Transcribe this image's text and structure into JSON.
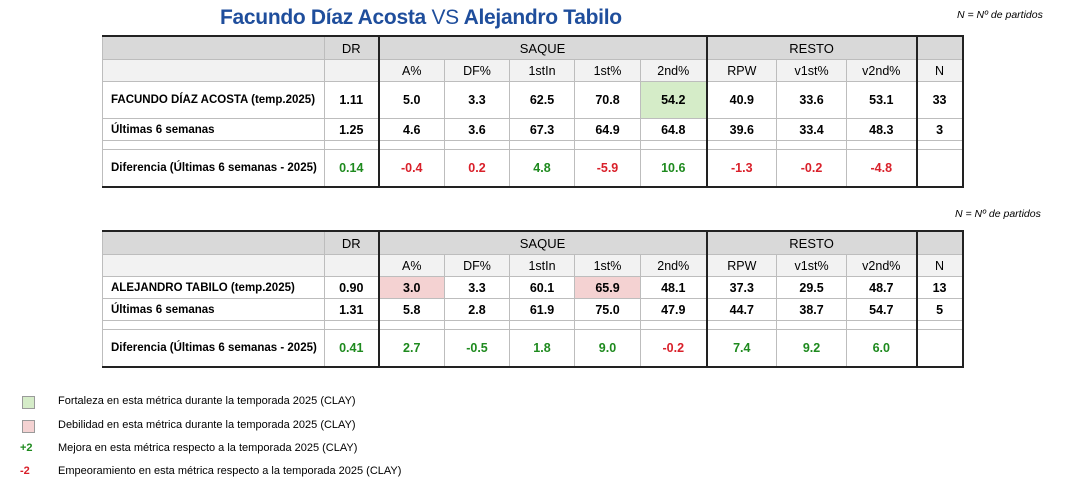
{
  "title": {
    "player1": "Facundo Díaz Acosta",
    "vs": "VS",
    "player2": "Alejandro Tabilo"
  },
  "note": "N = Nº de partidos",
  "headers": {
    "dr": "DR",
    "saque": "SAQUE",
    "resto": "RESTO",
    "cols": [
      "A%",
      "DF%",
      "1stIn",
      "1st%",
      "2nd%",
      "RPW",
      "v1st%",
      "v2nd%",
      "N"
    ]
  },
  "colors": {
    "strength": "#d5ecc8",
    "weakness": "#f4d2d2",
    "improve": "#1e8a1e",
    "worsen": "#d9202a",
    "title": "#1f4e9c"
  },
  "tables": [
    {
      "rows": [
        {
          "label": "FACUNDO DÍAZ ACOSTA (temp.2025)",
          "dr": "1.11",
          "values": [
            "5.0",
            "3.3",
            "62.5",
            "70.8",
            "54.2",
            "40.9",
            "33.6",
            "53.1",
            "33"
          ]
        },
        {
          "label": "Últimas 6 semanas",
          "dr": "1.25",
          "values": [
            "4.6",
            "3.6",
            "67.3",
            "64.9",
            "64.8",
            "39.6",
            "33.4",
            "48.3",
            "3"
          ]
        },
        {
          "label": "Diferencia (Últimas 6 semanas - 2025)",
          "dr": "0.14",
          "values": [
            "-0.4",
            "0.2",
            "4.8",
            "-5.9",
            "10.6",
            "-1.3",
            "-0.2",
            "-4.8",
            ""
          ]
        }
      ]
    },
    {
      "rows": [
        {
          "label": "ALEJANDRO TABILO (temp.2025)",
          "dr": "0.90",
          "values": [
            "3.0",
            "3.3",
            "60.1",
            "65.9",
            "48.1",
            "37.3",
            "29.5",
            "48.7",
            "13"
          ]
        },
        {
          "label": "Últimas 6 semanas",
          "dr": "1.31",
          "values": [
            "5.8",
            "2.8",
            "61.9",
            "75.0",
            "47.9",
            "44.7",
            "38.7",
            "54.7",
            "5"
          ]
        },
        {
          "label": "Diferencia (Últimas 6 semanas - 2025)",
          "dr": "0.41",
          "values": [
            "2.7",
            "-0.5",
            "1.8",
            "9.0",
            "-0.2",
            "7.4",
            "9.2",
            "6.0",
            ""
          ]
        }
      ]
    }
  ],
  "legend": [
    {
      "marker": "",
      "text": "Fortaleza en esta métrica durante la temporada 2025 (CLAY)"
    },
    {
      "marker": "",
      "text": "Debilidad en esta métrica durante la temporada 2025 (CLAY)"
    },
    {
      "marker": "+2",
      "text": "Mejora en esta métrica respecto a la temporada 2025 (CLAY)"
    },
    {
      "marker": "-2",
      "text": "Empeoramiento en esta métrica respecto a la temporada 2025 (CLAY)"
    }
  ]
}
